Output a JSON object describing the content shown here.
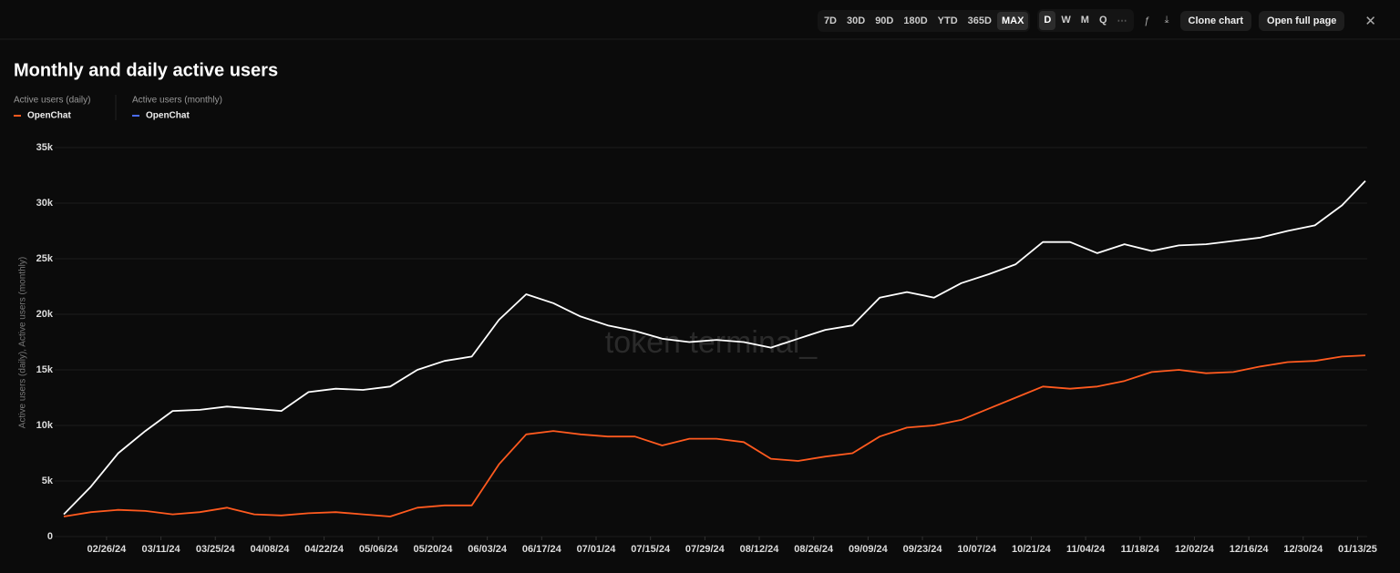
{
  "toolbar": {
    "ranges": [
      "7D",
      "30D",
      "90D",
      "180D",
      "YTD",
      "365D",
      "MAX"
    ],
    "active_range": "MAX",
    "granularity": [
      "D",
      "W",
      "M",
      "Q"
    ],
    "active_granularity": "D",
    "actions": [
      "Clone chart",
      "Open full page"
    ]
  },
  "chart_data": {
    "type": "line",
    "title": "Monthly and daily active users",
    "watermark": "token terminal_",
    "y_label": "Active users (daily), Active users (monthly)",
    "x": [
      "02/15/24",
      "02/22/24",
      "02/29/24",
      "03/07/24",
      "03/14/24",
      "03/21/24",
      "03/28/24",
      "04/04/24",
      "04/11/24",
      "04/18/24",
      "04/25/24",
      "05/02/24",
      "05/09/24",
      "05/16/24",
      "05/23/24",
      "05/30/24",
      "06/06/24",
      "06/13/24",
      "06/20/24",
      "06/27/24",
      "07/04/24",
      "07/11/24",
      "07/18/24",
      "07/25/24",
      "08/01/24",
      "08/08/24",
      "08/15/24",
      "08/22/24",
      "08/29/24",
      "09/05/24",
      "09/12/24",
      "09/19/24",
      "09/26/24",
      "10/03/24",
      "10/10/24",
      "10/17/24",
      "10/24/24",
      "10/31/24",
      "11/07/24",
      "11/14/24",
      "11/21/24",
      "11/28/24",
      "12/05/24",
      "12/12/24",
      "12/19/24",
      "12/26/24",
      "01/02/25",
      "01/09/25",
      "01/15/25"
    ],
    "xlim": [
      "02/15/24",
      "01/15/25"
    ],
    "xticks": [
      "02/26/24",
      "03/11/24",
      "03/25/24",
      "04/08/24",
      "04/22/24",
      "05/06/24",
      "05/20/24",
      "06/03/24",
      "06/17/24",
      "07/01/24",
      "07/15/24",
      "07/29/24",
      "08/12/24",
      "08/26/24",
      "09/09/24",
      "09/23/24",
      "10/07/24",
      "10/21/24",
      "11/04/24",
      "11/18/24",
      "12/02/24",
      "12/16/24",
      "12/30/24",
      "01/13/25"
    ],
    "ylim": [
      0,
      35000
    ],
    "yticks": [
      0,
      {
        "value": 5000,
        "label": "5k"
      },
      {
        "value": 10000,
        "label": "10k"
      },
      {
        "value": 15000,
        "label": "15k"
      },
      {
        "value": 20000,
        "label": "20k"
      },
      {
        "value": 25000,
        "label": "25k"
      },
      {
        "value": 30000,
        "label": "30k"
      },
      {
        "value": 35000,
        "label": "35k"
      }
    ],
    "grid": true,
    "series": [
      {
        "group": "Active users (daily)",
        "name": "OpenChat",
        "color": "#ff5a1f",
        "legend_color": "#ff5a1f",
        "values": [
          1800,
          2200,
          2400,
          2300,
          2000,
          2200,
          2600,
          2000,
          1900,
          2100,
          2200,
          2000,
          1800,
          2600,
          2800,
          2800,
          6500,
          9200,
          9500,
          9200,
          9000,
          9000,
          8200,
          8800,
          8800,
          8500,
          7000,
          6800,
          7200,
          7500,
          9000,
          9800,
          10000,
          10500,
          11500,
          12500,
          13500,
          13300,
          13500,
          14000,
          14800,
          15000,
          14700,
          14800,
          15300,
          15700,
          15800,
          16200,
          16300
        ]
      },
      {
        "group": "Active users (monthly)",
        "name": "OpenChat",
        "color": "#ffffff",
        "legend_color": "#4a6cf7",
        "values": [
          2000,
          4500,
          7500,
          9500,
          11300,
          11400,
          11700,
          11500,
          11300,
          13000,
          13300,
          13200,
          13500,
          15000,
          15800,
          16200,
          19500,
          21800,
          21000,
          19800,
          19000,
          18500,
          17800,
          17500,
          17700,
          17500,
          17000,
          17800,
          18600,
          19000,
          21500,
          22000,
          21500,
          22800,
          23600,
          24500,
          26500,
          26500,
          25500,
          26300,
          25700,
          26200,
          26300,
          26600,
          26900,
          27500,
          28000,
          29800,
          32000
        ]
      }
    ]
  }
}
